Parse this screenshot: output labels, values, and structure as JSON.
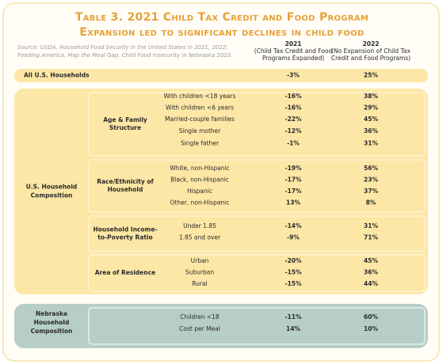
{
  "title": [
    "Table 3. 2021 Child Tax Credit and Food Program",
    "Expansion led to  significant declines in child food"
  ],
  "source": [
    "Source: USDA, Household Food Security in the United States in 2021, 2022;",
    "Feeding America, Map the Meal Gap, Child Food Insecurity in Nebraska 2023."
  ],
  "columns": [
    {
      "year": "2021",
      "note": [
        "(Child Tax Credit and Food",
        "Programs Expanded)"
      ]
    },
    {
      "year": "2022",
      "note": [
        "(No Expansion of Child Tax",
        "Credit and Food Programs)"
      ]
    }
  ],
  "all_households": {
    "label": "All U.S. Households",
    "values": [
      "-3%",
      "25%"
    ]
  },
  "sections": [
    {
      "label": [
        "U.S. Household",
        "Composition"
      ],
      "groups": [
        {
          "label": [
            "Age & Family",
            "Structure"
          ],
          "rows": [
            {
              "label": "With children <18 years",
              "values": [
                "-16%",
                "38%"
              ]
            },
            {
              "label": "With children <6 years",
              "values": [
                "-16%",
                "29%"
              ]
            },
            {
              "label": "Married-couple families",
              "values": [
                "-22%",
                "45%"
              ]
            },
            {
              "label": "Single mother",
              "values": [
                "-12%",
                "36%"
              ]
            },
            {
              "label": "Single father",
              "values": [
                "-1%",
                "31%"
              ]
            }
          ]
        },
        {
          "label": [
            "Race/Ethnicity of",
            "Household"
          ],
          "rows": [
            {
              "label": "White, non-Hispanic",
              "values": [
                "-19%",
                "56%"
              ]
            },
            {
              "label": "Black, non-Hispanic",
              "values": [
                "-17%",
                "23%"
              ]
            },
            {
              "label": "Hispanic",
              "values": [
                "-17%",
                "37%"
              ]
            },
            {
              "label": "Other, non-Hispanic",
              "values": [
                "13%",
                "8%"
              ]
            }
          ]
        },
        {
          "label": [
            "Household Income-",
            "to-Poverty Ratio"
          ],
          "rows": [
            {
              "label": "Under 1.85",
              "values": [
                "-14%",
                "31%"
              ]
            },
            {
              "label": "1.85 and over",
              "values": [
                "-9%",
                "71%"
              ]
            }
          ]
        },
        {
          "label": [
            "Area of Residence"
          ],
          "rows": [
            {
              "label": "Urban",
              "values": [
                "-20%",
                "45%"
              ]
            },
            {
              "label": "Suburban",
              "values": [
                "-15%",
                "36%"
              ]
            },
            {
              "label": "Rural",
              "values": [
                "-15%",
                "44%"
              ]
            }
          ]
        }
      ]
    },
    {
      "label": [
        "Nebraska",
        "Household",
        "Composition"
      ],
      "groups": [
        {
          "rows": [
            {
              "label": "Children <18",
              "values": [
                "-11%",
                "60%"
              ]
            },
            {
              "label": "Cost per Meal",
              "values": [
                "14%",
                "10%"
              ]
            }
          ]
        }
      ]
    }
  ]
}
